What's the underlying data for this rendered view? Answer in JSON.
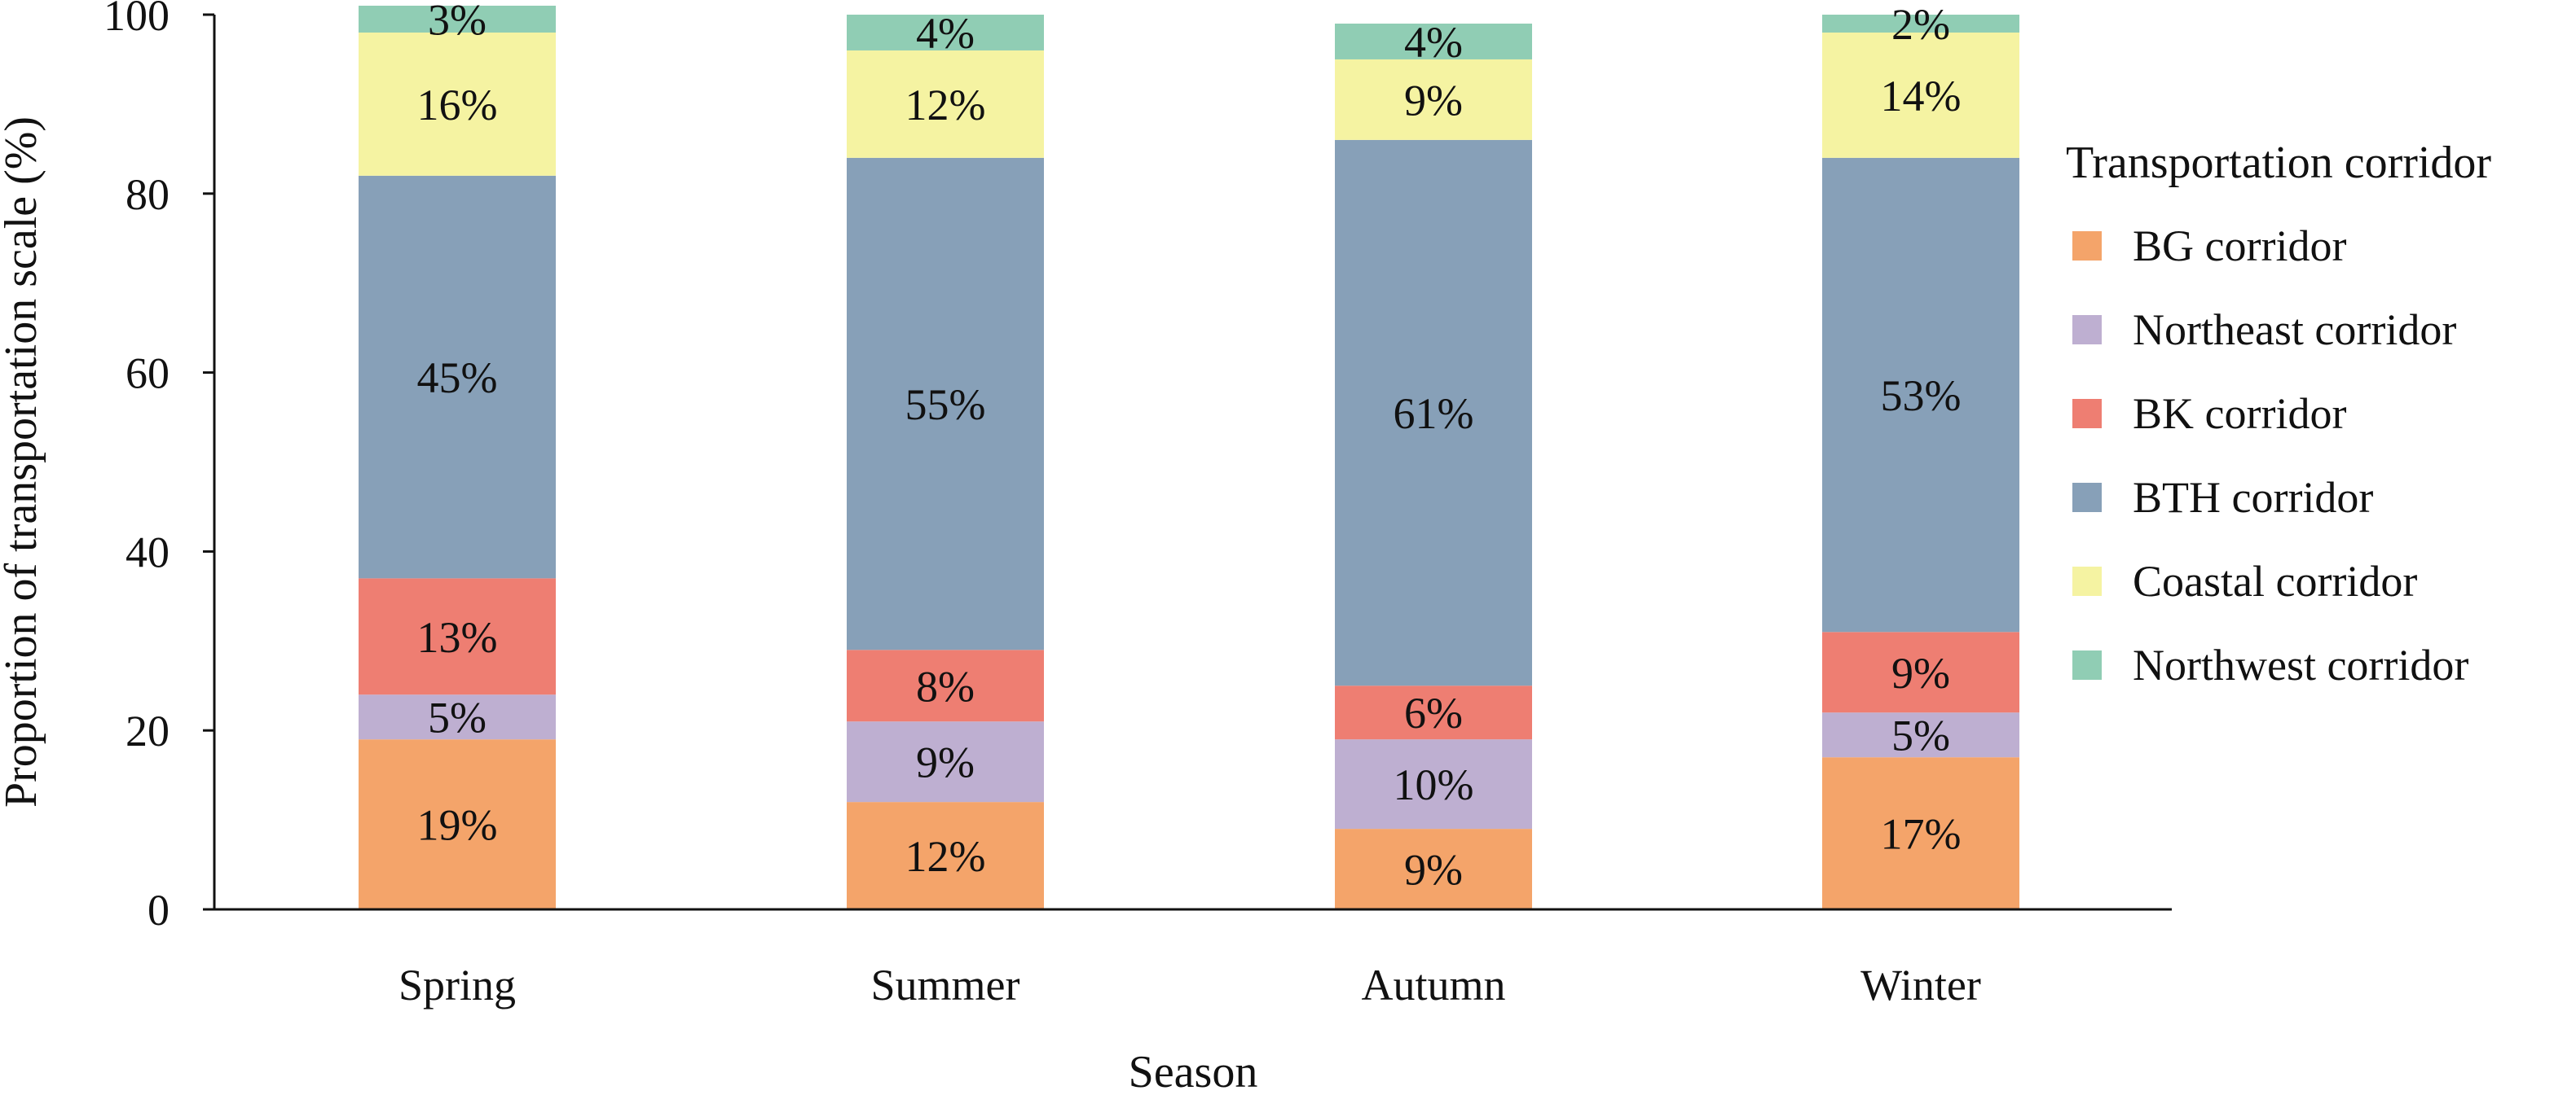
{
  "chart_data": {
    "type": "bar",
    "stacked": true,
    "xlabel": "Season",
    "ylabel": "Proportion of transportation scale (%)",
    "ylim": [
      0,
      100
    ],
    "yticks": [
      0,
      20,
      40,
      60,
      80,
      100
    ],
    "categories": [
      "Spring",
      "Summer",
      "Autumn",
      "Winter"
    ],
    "legend_title": "Transportation corridor",
    "legend_position": "right",
    "series": [
      {
        "name": "BG corridor",
        "color": "#f4a46a",
        "values": [
          19,
          12,
          9,
          17
        ],
        "labels": [
          "19%",
          "12%",
          "9%",
          "17%"
        ]
      },
      {
        "name": "Northeast corridor",
        "color": "#beafd1",
        "values": [
          5,
          9,
          10,
          5
        ],
        "labels": [
          "5%",
          "9%",
          "10%",
          "5%"
        ]
      },
      {
        "name": "BK corridor",
        "color": "#ee7e72",
        "values": [
          13,
          8,
          6,
          9
        ],
        "labels": [
          "13%",
          "8%",
          "6%",
          "9%"
        ]
      },
      {
        "name": "BTH corridor",
        "color": "#87a0b8",
        "values": [
          45,
          55,
          61,
          53
        ],
        "labels": [
          "45%",
          "55%",
          "61%",
          "53%"
        ]
      },
      {
        "name": "Coastal corridor",
        "color": "#f5f3a2",
        "values": [
          16,
          12,
          9,
          14
        ],
        "labels": [
          "16%",
          "12%",
          "9%",
          "14%"
        ]
      },
      {
        "name": "Northwest corridor",
        "color": "#90cdb4",
        "values": [
          3,
          4,
          4,
          2
        ],
        "labels": [
          "3%",
          "4%",
          "4%",
          "2%"
        ]
      }
    ],
    "grid": false
  }
}
